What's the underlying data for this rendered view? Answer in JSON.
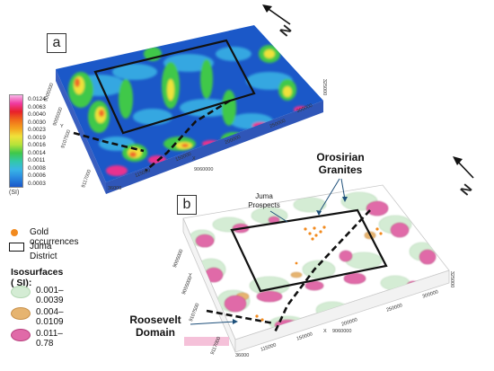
{
  "panel_a": {
    "label": "a",
    "north": "N",
    "colorbar": {
      "ticks": [
        "0.0124",
        "0.0063",
        "0.0040",
        "0.0030",
        "0.0023",
        "0.0019",
        "0.0016",
        "0.0014",
        "0.0011",
        "0.0008",
        "0.0006",
        "0.0003"
      ],
      "unit": "(SI)"
    },
    "axis_labels": [
      "36000",
      "115000",
      "150000",
      "200000",
      "250000",
      "300000",
      "325000",
      "9117000",
      "9005000",
      "9055000",
      "9107500",
      "9060000",
      "X",
      "Y"
    ]
  },
  "panel_b": {
    "label": "b",
    "north": "N",
    "callouts": {
      "granites": [
        "Orosirian",
        "Granites"
      ],
      "prospects": [
        "Juma",
        "Prospects"
      ],
      "domain": [
        "Roosevelt",
        "Domain"
      ]
    },
    "axis_labels": [
      "36000",
      "115000",
      "150000",
      "200000",
      "250000",
      "300000",
      "325000",
      "9117000",
      "9005000",
      "9055000",
      "9107500",
      "9060000",
      "X",
      "Y"
    ]
  },
  "legend": {
    "gold": "Gold occurrences",
    "district": "Juma District",
    "iso_title": "Isosurfaces ( SI):",
    "iso_items": [
      {
        "label": "0.001–0.0039",
        "color": "#d4ecd4"
      },
      {
        "label": "0.004–0.0109",
        "color": "#e6b470"
      },
      {
        "label": "0.011–0.78",
        "color": "#e06aa8"
      }
    ]
  },
  "colors": {
    "gold": "#f28a1e",
    "district_outline": "#111111"
  }
}
